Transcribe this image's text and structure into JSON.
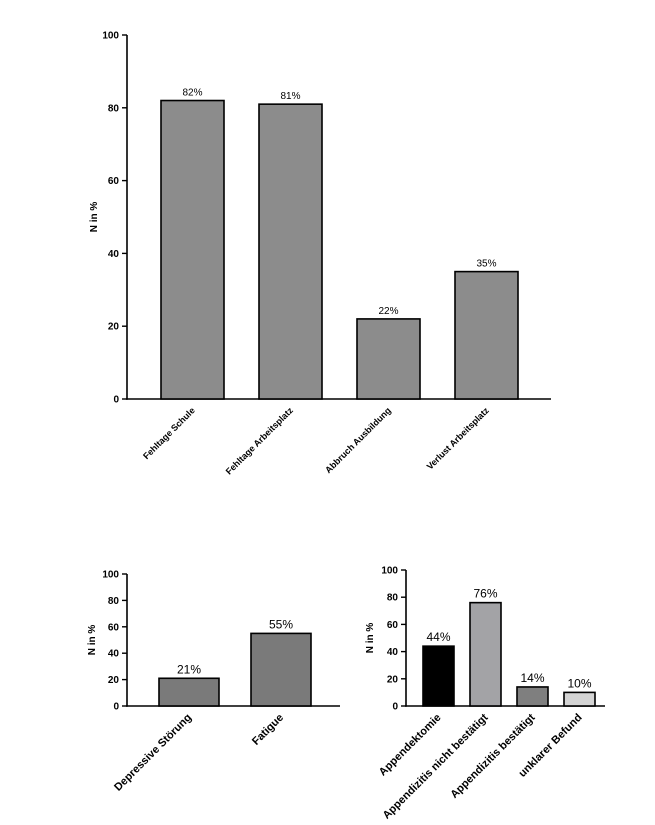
{
  "chart_data": [
    {
      "type": "bar",
      "ylabel": "N in %",
      "ylim": [
        0,
        100
      ],
      "yticks": [
        0,
        20,
        40,
        60,
        80,
        100
      ],
      "categories": [
        "Fehltage Schule",
        "Fehltage Arbeitsplatz",
        "Abbruch Ausbildung",
        "Verlust Arbeitsplatz"
      ],
      "values": [
        82,
        81,
        22,
        35
      ],
      "data_labels": [
        "82%",
        "81%",
        "22%",
        "35%"
      ],
      "bar_colors": [
        "#8c8c8c",
        "#8c8c8c",
        "#8c8c8c",
        "#8c8c8c"
      ]
    },
    {
      "type": "bar",
      "ylabel": "N in %",
      "ylim": [
        0,
        100
      ],
      "yticks": [
        0,
        20,
        40,
        60,
        80,
        100
      ],
      "categories": [
        "Depressive Störung",
        "Fatigue"
      ],
      "values": [
        21,
        55
      ],
      "data_labels": [
        "21%",
        "55%"
      ],
      "bar_colors": [
        "#7a7a7a",
        "#7a7a7a"
      ]
    },
    {
      "type": "bar",
      "ylabel": "N in %",
      "ylim": [
        0,
        100
      ],
      "yticks": [
        0,
        20,
        40,
        60,
        80,
        100
      ],
      "categories": [
        "Appendektomie",
        "Appendizitis nicht bestätigt",
        "Appendizitis bestätigt",
        "unklarer Befund"
      ],
      "values": [
        44,
        76,
        14,
        10
      ],
      "data_labels": [
        "44%",
        "76%",
        "14%",
        "10%"
      ],
      "bar_colors": [
        "#000000",
        "#a3a3a6",
        "#7f7f7f",
        "#d4d4d4"
      ]
    }
  ]
}
